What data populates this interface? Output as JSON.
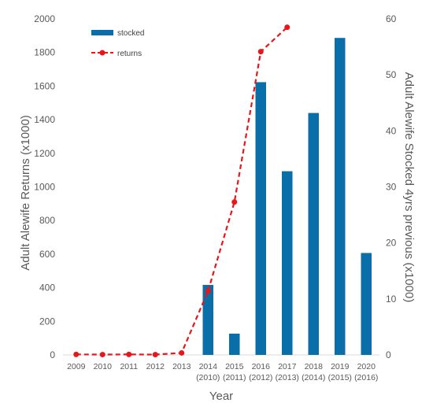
{
  "chart_data": {
    "type": "bar",
    "categories": [
      "2009",
      "2010",
      "2011",
      "2012",
      "2013",
      "2014",
      "2015",
      "2016",
      "2017",
      "2018",
      "2019",
      "2020"
    ],
    "category_sublabels": [
      "",
      "",
      "",
      "",
      "",
      "(2010)",
      "(2011)",
      "(2012)",
      "(2013)",
      "(2014)",
      "(2015)",
      "(2016)"
    ],
    "xlabel": "Year",
    "ylabel_left": "Adult Alewife Returns (x1000)",
    "ylabel_right": "Adult Alewife Stocked 4yrs previous (x1000)",
    "ylim_left": [
      0,
      2000
    ],
    "ylim_right": [
      0,
      60
    ],
    "yticks_left": [
      0,
      200,
      400,
      600,
      800,
      1000,
      1200,
      1400,
      1600,
      1800,
      2000
    ],
    "yticks_right": [
      0,
      10,
      20,
      30,
      40,
      50,
      60
    ],
    "grid": false,
    "legend_position": "top-left",
    "series": [
      {
        "name": "stocked",
        "kind": "bar",
        "axis": "right",
        "color": "#0a6ea8",
        "values": [
          null,
          null,
          null,
          null,
          null,
          12.5,
          3.8,
          48.7,
          32.8,
          43.2,
          56.6,
          18.2
        ]
      },
      {
        "name": "returns",
        "kind": "line",
        "axis": "left",
        "color": "#e8161b",
        "style": "dashed",
        "marker": "circle",
        "values": [
          3,
          2,
          3,
          2,
          12,
          380,
          910,
          1805,
          1950,
          null,
          null,
          null
        ]
      }
    ]
  }
}
